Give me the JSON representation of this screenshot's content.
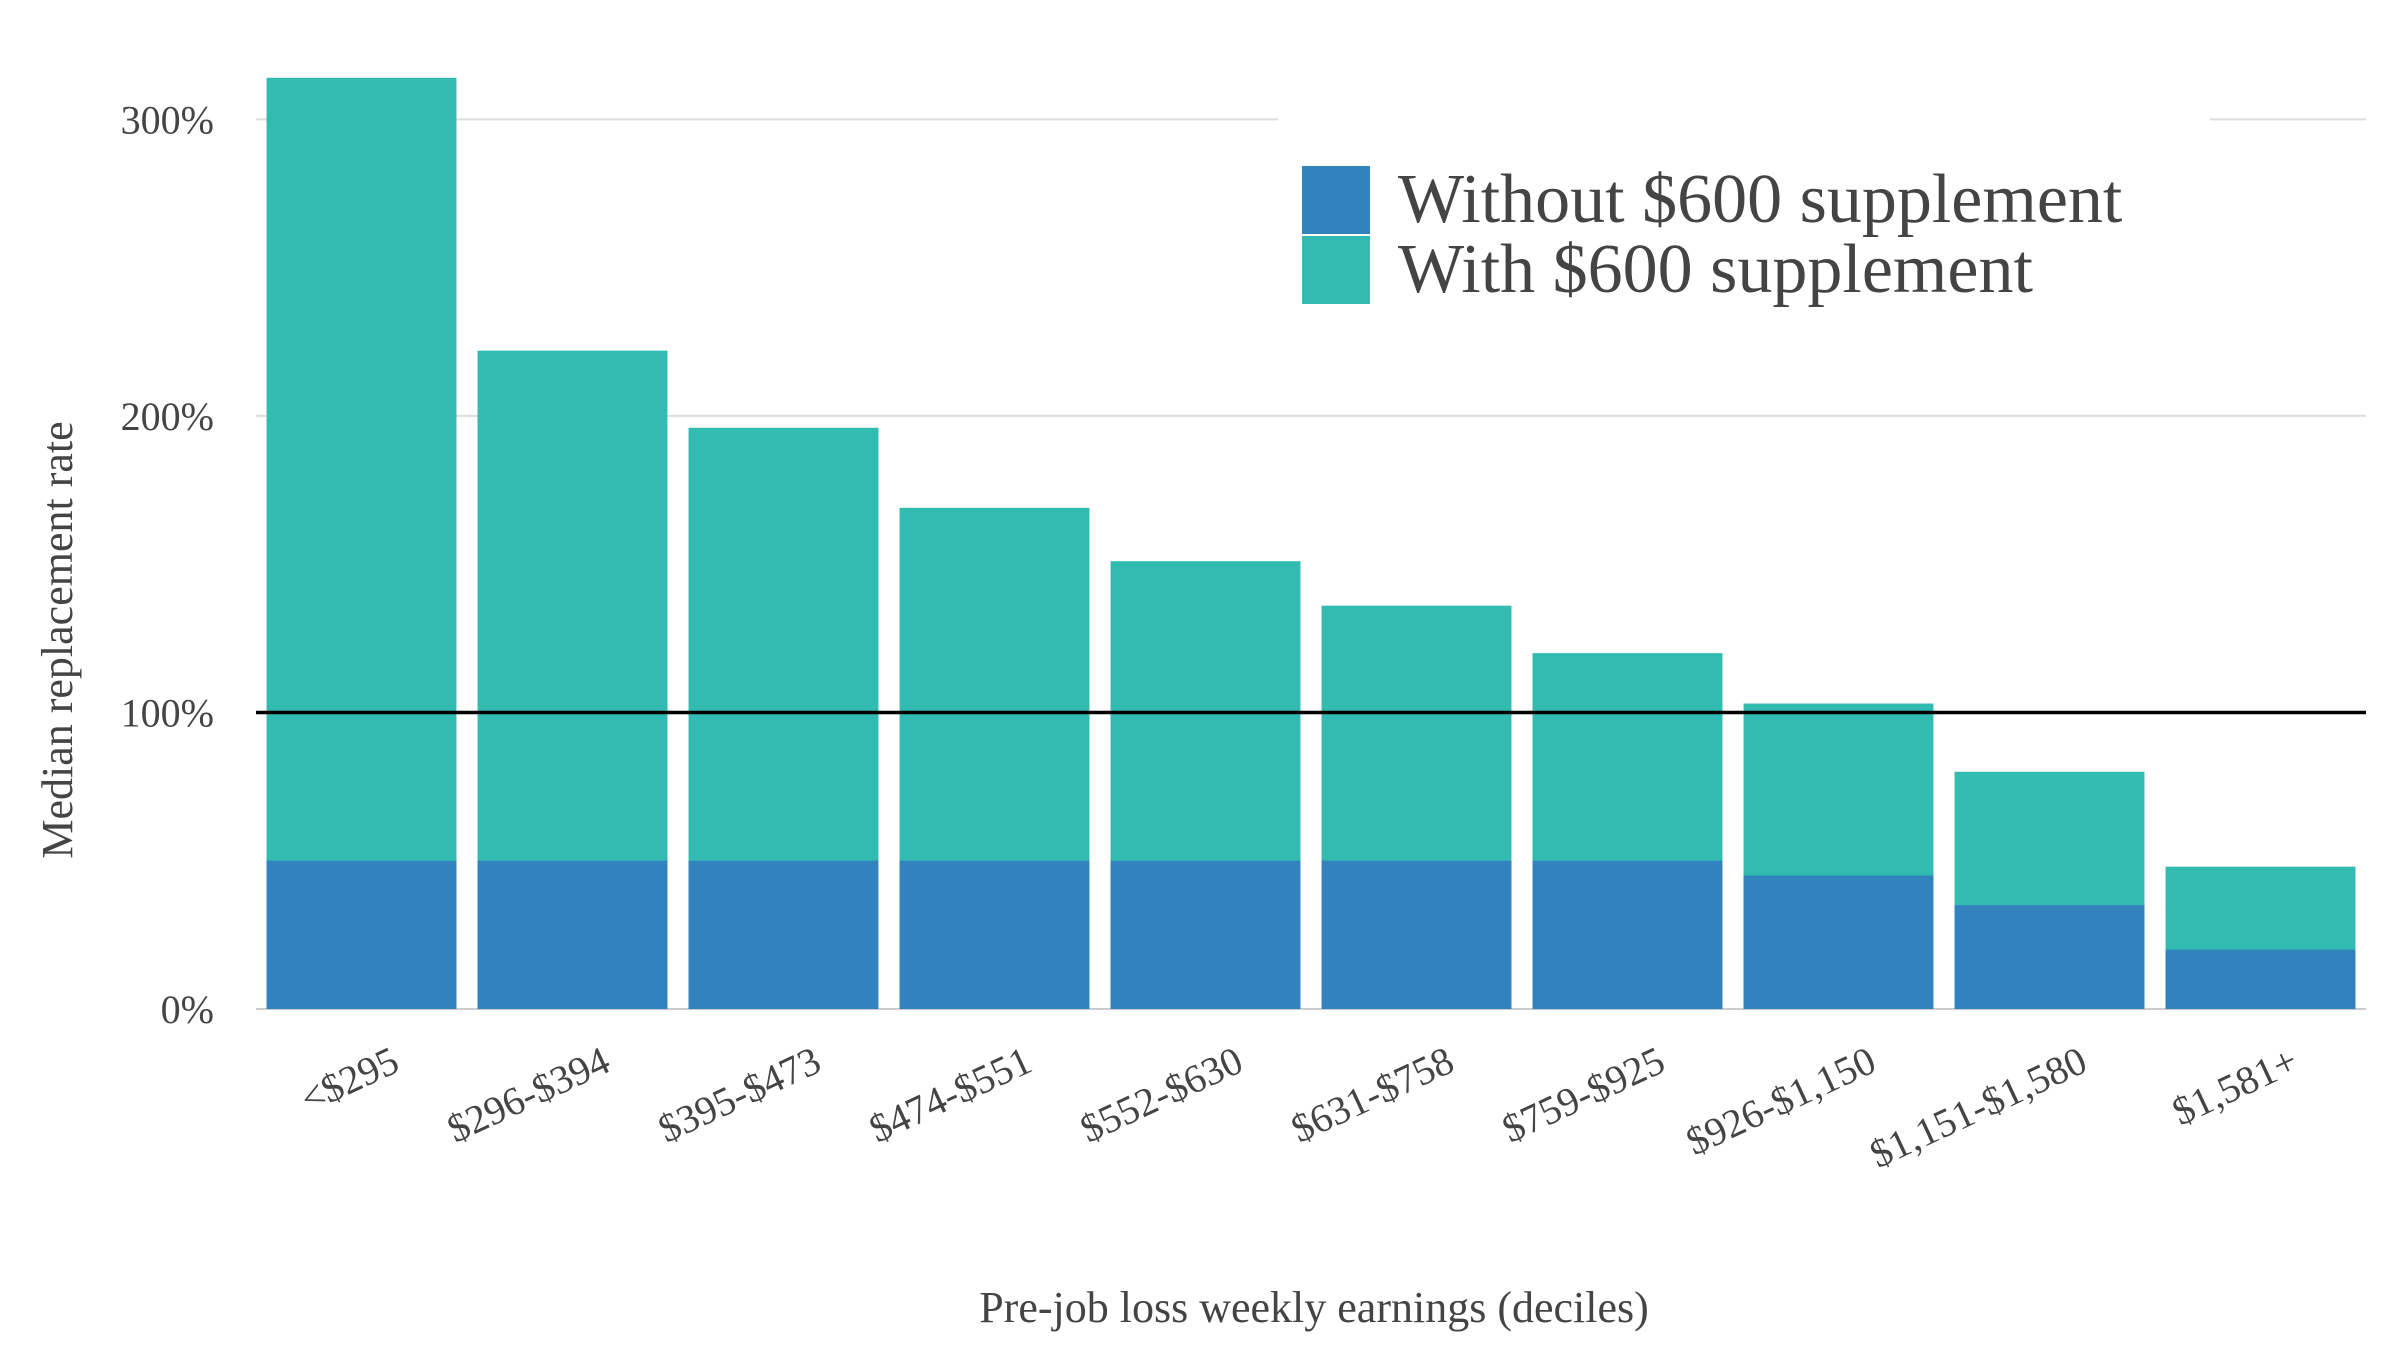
{
  "chart_data": {
    "type": "bar",
    "stacked": false,
    "overlap": true,
    "title": "",
    "xlabel": "Pre-job loss weekly earnings (deciles)",
    "ylabel": "Median replacement rate",
    "categories": [
      "<$295",
      "$296-$394",
      "$395-$473",
      "$474-$551",
      "$552-$630",
      "$631-$758",
      "$759-$925",
      "$926-$1,150",
      "$1,151-$1,580",
      "$1,581+"
    ],
    "series": [
      {
        "name": "Without $600 supplement",
        "color": "#3182bd",
        "values": [
          50,
          50,
          50,
          50,
          50,
          50,
          50,
          45,
          35,
          20
        ]
      },
      {
        "name": "With $600 supplement",
        "color": "#31bbb1",
        "values": [
          314,
          222,
          196,
          169,
          151,
          136,
          120,
          103,
          80,
          48
        ]
      }
    ],
    "ylim": [
      0,
      320
    ],
    "yticks": [
      0,
      100,
      200,
      300
    ],
    "ytick_labels": [
      "0%",
      "100%",
      "200%",
      "300%"
    ],
    "reference_line": 100,
    "reference_color": "#000000",
    "grid": true,
    "legend_position": "top-right"
  }
}
